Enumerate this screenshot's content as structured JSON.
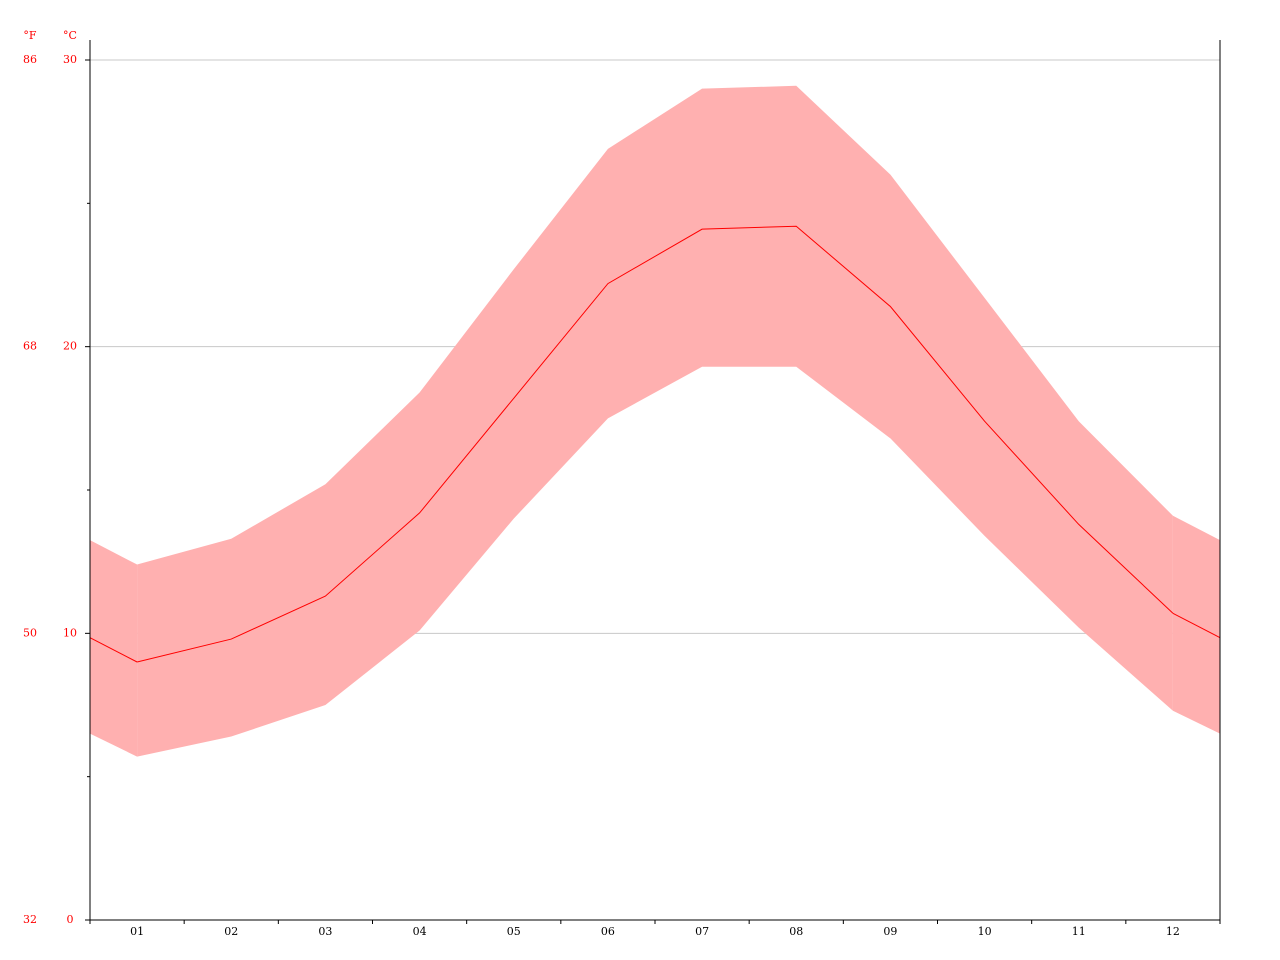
{
  "chart_data": {
    "type": "line",
    "y_unit": "°C",
    "y2_unit": "°F",
    "categories": [
      "01",
      "02",
      "03",
      "04",
      "05",
      "06",
      "07",
      "08",
      "09",
      "10",
      "11",
      "12"
    ],
    "series": [
      {
        "color": "#ff0000",
        "values": [
          9.0,
          9.8,
          11.3,
          14.2,
          18.2,
          22.2,
          24.1,
          24.2,
          21.4,
          17.4,
          13.8,
          10.7
        ]
      }
    ],
    "band": {
      "color": "#ffb0b0",
      "upper": [
        12.4,
        13.3,
        15.2,
        18.4,
        22.7,
        26.9,
        29.0,
        29.1,
        26.0,
        21.7,
        17.4,
        14.1
      ],
      "lower": [
        5.7,
        6.4,
        7.5,
        10.1,
        14.0,
        17.5,
        19.3,
        19.3,
        16.8,
        13.4,
        10.2,
        7.3
      ]
    },
    "ylim": [
      0,
      30
    ],
    "yticks": [
      0,
      10,
      20,
      30
    ],
    "yminorticks": [
      5,
      15,
      25
    ],
    "y2lim": [
      32,
      86
    ],
    "y2ticks": [
      32,
      50,
      68,
      86
    ],
    "grid": true,
    "tick_label_color": "#ff0000"
  }
}
